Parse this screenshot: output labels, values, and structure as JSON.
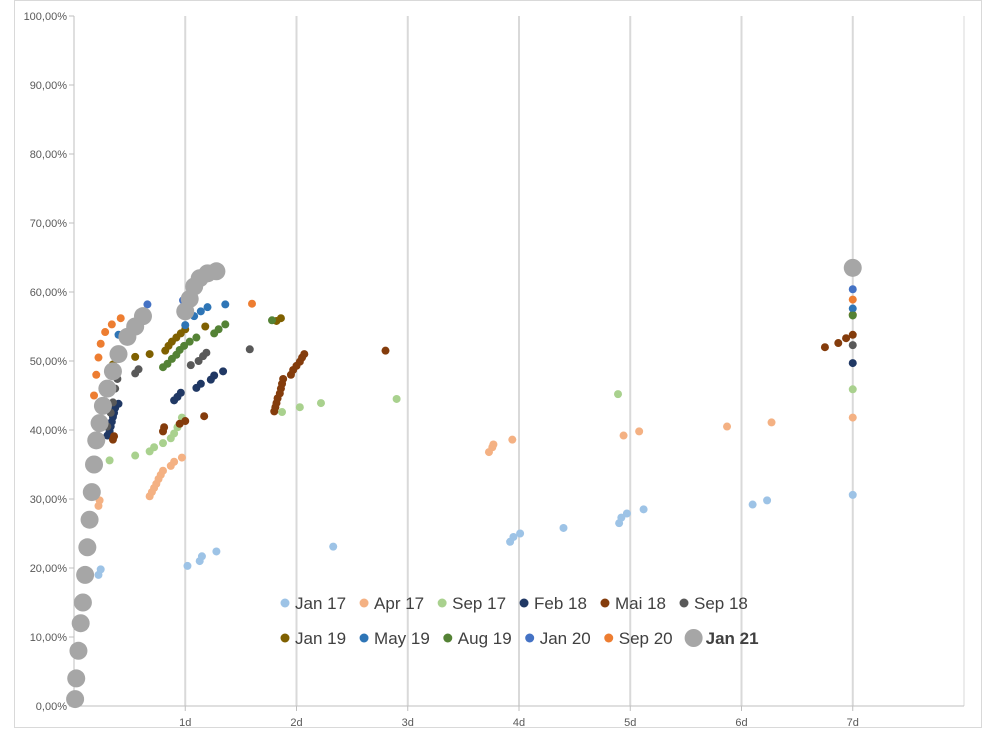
{
  "chart_data": {
    "type": "scatter",
    "title": "",
    "xlabel": "",
    "ylabel": "",
    "xlim": [
      0,
      8
    ],
    "ylim": [
      0,
      100
    ],
    "x_tick_labels": [
      "1d",
      "2d",
      "3d",
      "4d",
      "5d",
      "6d",
      "7d"
    ],
    "x_tick_values": [
      1,
      2,
      3,
      4,
      5,
      6,
      7
    ],
    "y_tick_labels": [
      "0,00%",
      "10,00%",
      "20,00%",
      "30,00%",
      "40,00%",
      "50,00%",
      "60,00%",
      "70,00%",
      "80,00%",
      "90,00%",
      "100,00%"
    ],
    "y_tick_values": [
      0,
      10,
      20,
      30,
      40,
      50,
      60,
      70,
      80,
      90,
      100
    ],
    "grid": "vertical",
    "legend_position": "bottom-right",
    "series": [
      {
        "name": "Jan 17",
        "color": "#9dc3e6",
        "points": [
          [
            0.22,
            19
          ],
          [
            0.24,
            19.8
          ],
          [
            1.02,
            20.3
          ],
          [
            1.13,
            21
          ],
          [
            1.15,
            21.7
          ],
          [
            1.28,
            22.4
          ],
          [
            2.33,
            23.1
          ],
          [
            3.92,
            23.8
          ],
          [
            3.95,
            24.5
          ],
          [
            4.01,
            25
          ],
          [
            4.4,
            25.8
          ],
          [
            4.9,
            26.5
          ],
          [
            4.92,
            27.3
          ],
          [
            4.97,
            27.9
          ],
          [
            5.12,
            28.5
          ],
          [
            6.1,
            29.2
          ],
          [
            6.23,
            29.8
          ],
          [
            7,
            30.6
          ]
        ]
      },
      {
        "name": "Apr 17",
        "color": "#f4b183",
        "points": [
          [
            0.22,
            29
          ],
          [
            0.23,
            29.8
          ],
          [
            0.68,
            30.4
          ],
          [
            0.7,
            31
          ],
          [
            0.72,
            31.6
          ],
          [
            0.74,
            32.2
          ],
          [
            0.76,
            32.9
          ],
          [
            0.78,
            33.5
          ],
          [
            0.8,
            34.1
          ],
          [
            0.87,
            34.8
          ],
          [
            0.9,
            35.4
          ],
          [
            0.97,
            36
          ],
          [
            3.73,
            36.8
          ],
          [
            3.76,
            37.5
          ],
          [
            3.77,
            37.9
          ],
          [
            3.94,
            38.6
          ],
          [
            4.94,
            39.2
          ],
          [
            5.08,
            39.8
          ],
          [
            5.87,
            40.5
          ],
          [
            6.27,
            41.1
          ],
          [
            7,
            41.8
          ]
        ]
      },
      {
        "name": "Sep 17",
        "color": "#a9d18e",
        "points": [
          [
            0.32,
            35.6
          ],
          [
            0.55,
            36.3
          ],
          [
            0.68,
            36.9
          ],
          [
            0.72,
            37.5
          ],
          [
            0.8,
            38.1
          ],
          [
            0.87,
            38.8
          ],
          [
            0.9,
            39.5
          ],
          [
            0.93,
            40.4
          ],
          [
            0.97,
            41.8
          ],
          [
            1.87,
            42.6
          ],
          [
            2.03,
            43.3
          ],
          [
            2.22,
            43.9
          ],
          [
            2.9,
            44.5
          ],
          [
            4.89,
            45.2
          ],
          [
            7,
            45.9
          ]
        ]
      },
      {
        "name": "Feb 18",
        "color": "#203864",
        "points": [
          [
            0.3,
            39.2
          ],
          [
            0.32,
            39.8
          ],
          [
            0.33,
            40.5
          ],
          [
            0.34,
            41.2
          ],
          [
            0.35,
            41.9
          ],
          [
            0.36,
            42.5
          ],
          [
            0.37,
            43.2
          ],
          [
            0.4,
            43.8
          ],
          [
            0.9,
            44.3
          ],
          [
            0.93,
            44.8
          ],
          [
            0.96,
            45.4
          ],
          [
            1.1,
            46.1
          ],
          [
            1.14,
            46.7
          ],
          [
            1.23,
            47.3
          ],
          [
            1.26,
            47.9
          ],
          [
            1.34,
            48.5
          ],
          [
            7,
            49.7
          ]
        ]
      },
      {
        "name": "Mai 18",
        "color": "#843c0c",
        "points": [
          [
            0.35,
            38.6
          ],
          [
            0.36,
            39.1
          ],
          [
            0.8,
            39.8
          ],
          [
            0.81,
            40.4
          ],
          [
            0.95,
            40.9
          ],
          [
            1.0,
            41.3
          ],
          [
            1.17,
            42
          ],
          [
            1.8,
            42.7
          ],
          [
            1.81,
            43.3
          ],
          [
            1.82,
            43.9
          ],
          [
            1.83,
            44.6
          ],
          [
            1.85,
            45.3
          ],
          [
            1.86,
            46
          ],
          [
            1.87,
            46.7
          ],
          [
            1.88,
            47.4
          ],
          [
            1.95,
            48
          ],
          [
            1.97,
            48.7
          ],
          [
            2.0,
            49.3
          ],
          [
            2.03,
            49.9
          ],
          [
            2.05,
            50.5
          ],
          [
            2.07,
            51
          ],
          [
            2.8,
            51.5
          ],
          [
            6.75,
            52
          ],
          [
            6.87,
            52.6
          ],
          [
            6.94,
            53.3
          ],
          [
            7,
            53.8
          ]
        ]
      },
      {
        "name": "Sep 18",
        "color": "#595959",
        "points": [
          [
            0.3,
            40.5
          ],
          [
            0.33,
            42.5
          ],
          [
            0.35,
            44
          ],
          [
            0.37,
            46
          ],
          [
            0.39,
            47.4
          ],
          [
            0.55,
            48.2
          ],
          [
            0.58,
            48.8
          ],
          [
            1.05,
            49.4
          ],
          [
            1.12,
            50
          ],
          [
            1.16,
            50.7
          ],
          [
            1.19,
            51.2
          ],
          [
            1.58,
            51.7
          ],
          [
            7,
            52.3
          ]
        ]
      },
      {
        "name": "Jan 19",
        "color": "#7f6000",
        "points": [
          [
            0.3,
            46.5
          ],
          [
            0.33,
            48
          ],
          [
            0.35,
            49.5
          ],
          [
            0.55,
            50.6
          ],
          [
            0.68,
            51
          ],
          [
            0.82,
            51.5
          ],
          [
            0.85,
            52.2
          ],
          [
            0.88,
            52.8
          ],
          [
            0.92,
            53.4
          ],
          [
            0.96,
            54
          ],
          [
            1.0,
            54.6
          ],
          [
            1.18,
            55
          ],
          [
            1.82,
            55.8
          ],
          [
            1.86,
            56.2
          ],
          [
            7,
            56.7
          ]
        ]
      },
      {
        "name": "May 19",
        "color": "#2e75b6",
        "points": [
          [
            0.4,
            53.8
          ],
          [
            0.5,
            54.5
          ],
          [
            0.63,
            56
          ],
          [
            1.0,
            55.2
          ],
          [
            1.08,
            56.5
          ],
          [
            1.14,
            57.2
          ],
          [
            1.2,
            57.8
          ],
          [
            1.36,
            58.2
          ],
          [
            7,
            57.6
          ]
        ]
      },
      {
        "name": "Aug 19",
        "color": "#548235",
        "points": [
          [
            0.8,
            49.1
          ],
          [
            0.84,
            49.6
          ],
          [
            0.88,
            50.3
          ],
          [
            0.92,
            50.9
          ],
          [
            0.95,
            51.6
          ],
          [
            0.99,
            52.2
          ],
          [
            1.04,
            52.8
          ],
          [
            1.1,
            53.4
          ],
          [
            1.26,
            54
          ],
          [
            1.3,
            54.6
          ],
          [
            1.36,
            55.3
          ],
          [
            1.78,
            55.9
          ],
          [
            7,
            56.6
          ]
        ]
      },
      {
        "name": "Jan 20",
        "color": "#4472c4",
        "points": [
          [
            0.66,
            58.2
          ],
          [
            0.98,
            58.8
          ],
          [
            1.07,
            59.4
          ],
          [
            7,
            60.4
          ]
        ]
      },
      {
        "name": "Sep 20",
        "color": "#ed7d31",
        "points": [
          [
            0.18,
            45
          ],
          [
            0.2,
            48
          ],
          [
            0.22,
            50.5
          ],
          [
            0.24,
            52.5
          ],
          [
            0.28,
            54.2
          ],
          [
            0.34,
            55.3
          ],
          [
            0.42,
            56.2
          ],
          [
            1.6,
            58.3
          ],
          [
            7,
            58.9
          ]
        ]
      },
      {
        "name": "Jan 21",
        "color": "#a6a6a6",
        "points": [
          [
            0.01,
            1
          ],
          [
            0.02,
            4
          ],
          [
            0.04,
            8
          ],
          [
            0.06,
            12
          ],
          [
            0.08,
            15
          ],
          [
            0.1,
            19
          ],
          [
            0.12,
            23
          ],
          [
            0.14,
            27
          ],
          [
            0.16,
            31
          ],
          [
            0.18,
            35
          ],
          [
            0.2,
            38.5
          ],
          [
            0.23,
            41
          ],
          [
            0.26,
            43.5
          ],
          [
            0.3,
            46
          ],
          [
            0.35,
            48.5
          ],
          [
            0.4,
            51
          ],
          [
            0.48,
            53.5
          ],
          [
            0.55,
            55
          ],
          [
            0.62,
            56.5
          ],
          [
            1.0,
            57.2
          ],
          [
            1.04,
            59
          ],
          [
            1.08,
            60.8
          ],
          [
            1.13,
            62
          ],
          [
            1.2,
            62.7
          ],
          [
            1.28,
            63
          ],
          [
            7,
            63.5
          ]
        ]
      }
    ]
  }
}
